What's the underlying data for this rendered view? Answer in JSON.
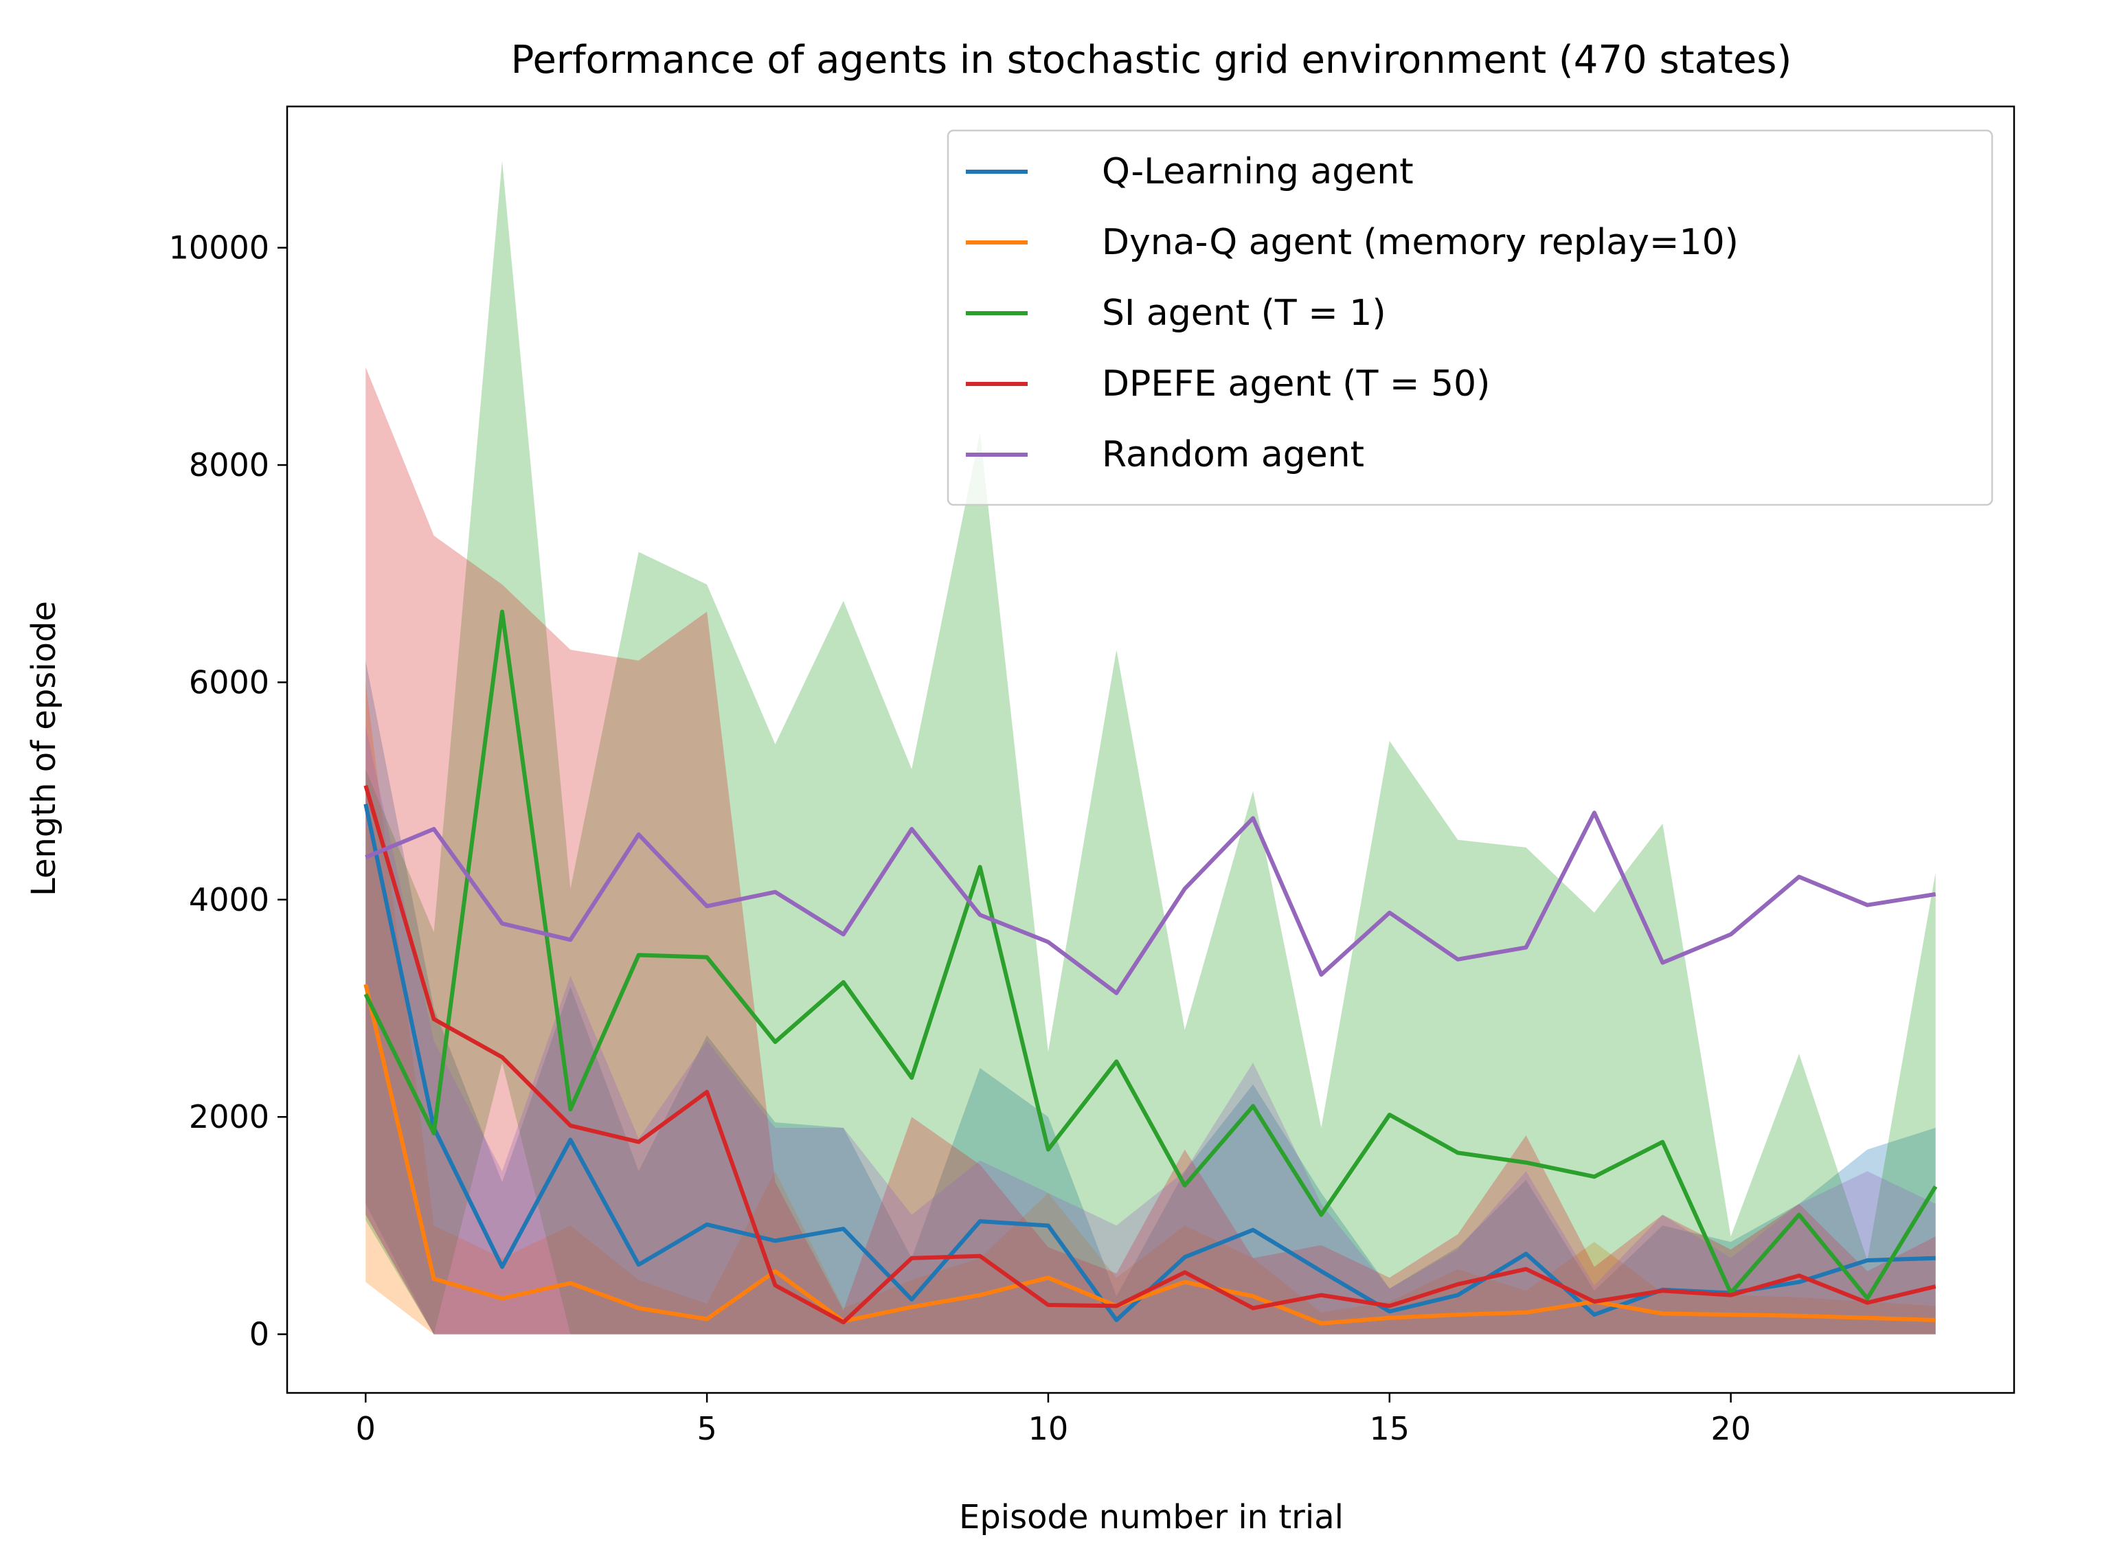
{
  "chart_data": {
    "type": "line",
    "title": "Performance of agents in stochastic grid environment (470 states)",
    "xlabel": "Episode number in trial",
    "ylabel": "Length of epsiode",
    "xlim": [
      -1.15,
      24.15
    ],
    "ylim": [
      -540,
      11300
    ],
    "xticks": [
      0,
      5,
      10,
      15,
      20
    ],
    "yticks": [
      0,
      2000,
      4000,
      6000,
      8000,
      10000
    ],
    "grid": false,
    "legend_position": "top-right",
    "x": [
      0,
      1,
      2,
      3,
      4,
      5,
      6,
      7,
      8,
      9,
      10,
      11,
      12,
      13,
      14,
      15,
      16,
      17,
      18,
      19,
      20,
      21,
      22,
      23
    ],
    "series": [
      {
        "name": "Q-Learning agent",
        "color": "#1f77b4",
        "values": [
          4880,
          1900,
          620,
          1790,
          640,
          1010,
          860,
          970,
          320,
          1040,
          1000,
          130,
          710,
          960,
          580,
          210,
          360,
          740,
          180,
          410,
          380,
          480,
          680,
          700
        ],
        "lower": [
          1200,
          0,
          0,
          0,
          0,
          0,
          0,
          0,
          0,
          0,
          0,
          0,
          0,
          0,
          0,
          0,
          0,
          0,
          0,
          0,
          0,
          0,
          0,
          0
        ],
        "upper": [
          6200,
          3000,
          1400,
          3200,
          1500,
          2750,
          1950,
          1900,
          700,
          2450,
          2000,
          350,
          1500,
          2300,
          1300,
          420,
          800,
          1420,
          400,
          1000,
          850,
          1200,
          1700,
          1900
        ]
      },
      {
        "name": "Dyna-Q agent (memory replay=10)",
        "color": "#ff7f0e",
        "values": [
          3220,
          510,
          330,
          470,
          240,
          140,
          580,
          120,
          250,
          360,
          520,
          260,
          480,
          350,
          100,
          150,
          180,
          200,
          300,
          190,
          180,
          170,
          150,
          130
        ],
        "lower": [
          480,
          0,
          0,
          0,
          0,
          0,
          0,
          0,
          0,
          0,
          0,
          0,
          0,
          0,
          0,
          0,
          0,
          0,
          0,
          0,
          0,
          0,
          0,
          0
        ],
        "upper": [
          6000,
          1000,
          700,
          1000,
          500,
          280,
          1500,
          240,
          500,
          700,
          1300,
          520,
          1000,
          700,
          200,
          300,
          600,
          400,
          850,
          380,
          360,
          340,
          300,
          260
        ]
      },
      {
        "name": "SI agent (T = 1)",
        "color": "#2ca02c",
        "values": [
          3130,
          1850,
          6650,
          2070,
          3490,
          3470,
          2690,
          3240,
          2360,
          4300,
          1700,
          2510,
          1370,
          2100,
          1100,
          2020,
          1670,
          1580,
          1450,
          1770,
          380,
          1100,
          330,
          1360
        ],
        "lower": [
          1050,
          0,
          2500,
          0,
          0,
          0,
          0,
          0,
          0,
          0,
          0,
          0,
          0,
          0,
          0,
          0,
          0,
          0,
          0,
          0,
          0,
          0,
          0,
          0
        ],
        "upper": [
          5200,
          3700,
          10800,
          4100,
          7200,
          6900,
          5430,
          6750,
          5200,
          8300,
          2600,
          6300,
          2800,
          5000,
          1900,
          5460,
          4550,
          4480,
          3880,
          4700,
          900,
          2580,
          680,
          4250
        ]
      },
      {
        "name": "DPEFE agent (T = 50)",
        "color": "#d62728",
        "values": [
          5050,
          2900,
          2550,
          1920,
          1770,
          2230,
          450,
          110,
          700,
          720,
          270,
          260,
          570,
          240,
          360,
          260,
          460,
          600,
          300,
          400,
          360,
          540,
          290,
          440
        ],
        "lower": [
          1100,
          0,
          0,
          0,
          0,
          0,
          0,
          0,
          0,
          0,
          0,
          0,
          0,
          0,
          0,
          0,
          0,
          0,
          0,
          0,
          0,
          0,
          0,
          0
        ],
        "upper": [
          8900,
          7350,
          6900,
          6300,
          6200,
          6650,
          1400,
          220,
          2000,
          1560,
          800,
          560,
          1700,
          700,
          820,
          520,
          920,
          1830,
          620,
          1100,
          780,
          1200,
          580,
          900
        ]
      },
      {
        "name": "Random agent",
        "color": "#9467bd",
        "values": [
          4390,
          4650,
          3780,
          3630,
          4600,
          3940,
          4070,
          3680,
          4650,
          3860,
          3610,
          3140,
          4100,
          4750,
          3310,
          3880,
          3450,
          3560,
          4800,
          3420,
          3680,
          4210,
          3950,
          4050
        ],
        "lower": [
          1100,
          0,
          0,
          0,
          0,
          0,
          0,
          0,
          0,
          0,
          0,
          0,
          0,
          0,
          0,
          0,
          0,
          0,
          0,
          0,
          0,
          0,
          0,
          0
        ],
        "upper": [
          5600,
          2700,
          1500,
          3300,
          1800,
          2700,
          1900,
          1900,
          1100,
          1600,
          1300,
          1000,
          1500,
          2500,
          1200,
          420,
          780,
          1500,
          450,
          1100,
          700,
          1200,
          1500,
          1200
        ]
      }
    ]
  }
}
